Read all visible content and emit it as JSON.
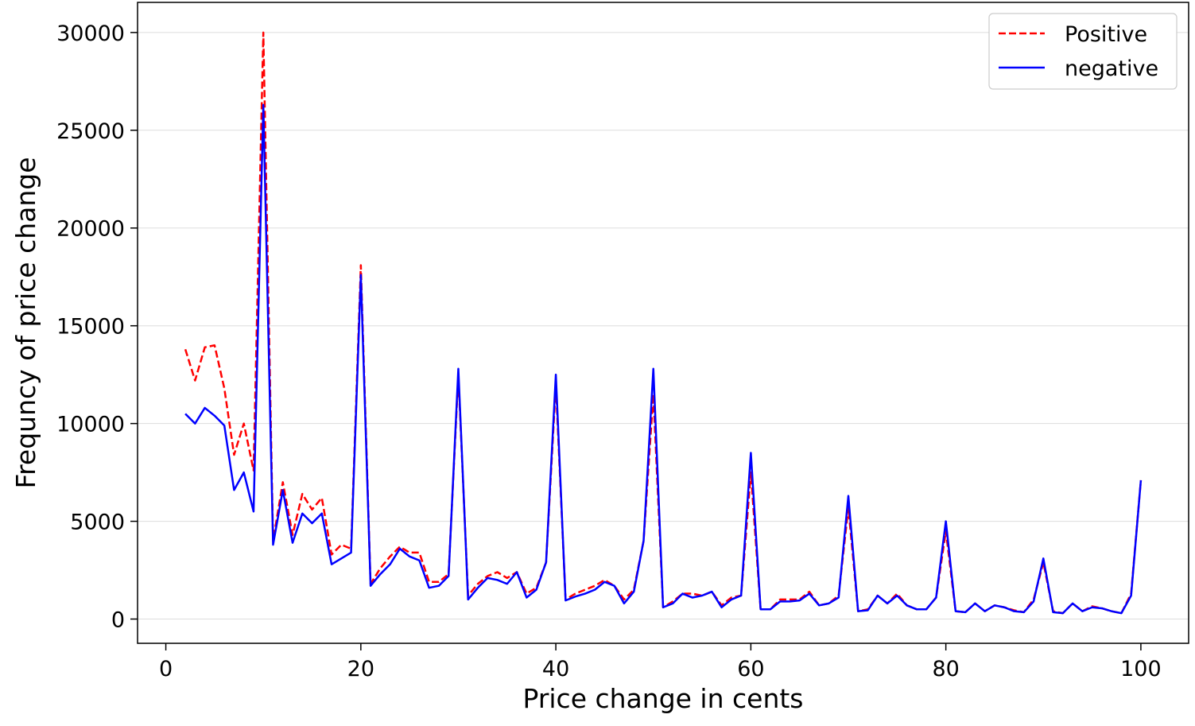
{
  "chart_data": {
    "type": "line",
    "xlabel": "Price change in cents",
    "ylabel": "Frequncy of price change",
    "x": [
      2,
      3,
      4,
      5,
      6,
      7,
      8,
      9,
      10,
      11,
      12,
      13,
      14,
      15,
      16,
      17,
      18,
      19,
      20,
      21,
      22,
      23,
      24,
      25,
      26,
      27,
      28,
      29,
      30,
      31,
      32,
      33,
      34,
      35,
      36,
      37,
      38,
      39,
      40,
      41,
      42,
      43,
      44,
      45,
      46,
      47,
      48,
      49,
      50,
      51,
      52,
      53,
      54,
      55,
      56,
      57,
      58,
      59,
      60,
      61,
      62,
      63,
      64,
      65,
      66,
      67,
      68,
      69,
      70,
      71,
      72,
      73,
      74,
      75,
      76,
      77,
      78,
      79,
      80,
      81,
      82,
      83,
      84,
      85,
      86,
      87,
      88,
      89,
      90,
      91,
      92,
      93,
      94,
      95,
      96,
      97,
      98,
      99,
      100
    ],
    "series": [
      {
        "name": "Positive",
        "color": "#ff0000",
        "dash": "dashed",
        "values": [
          13800,
          12200,
          13900,
          14000,
          11800,
          8400,
          10000,
          7600,
          30000,
          4000,
          7000,
          4300,
          6400,
          5600,
          6200,
          3300,
          3800,
          3600,
          18100,
          1800,
          2600,
          3200,
          3700,
          3400,
          3400,
          1900,
          1900,
          2300,
          12500,
          1200,
          1800,
          2200,
          2400,
          2100,
          2400,
          1300,
          1600,
          2900,
          12000,
          1000,
          1300,
          1500,
          1700,
          2000,
          1700,
          1000,
          1500,
          4000,
          11500,
          600,
          900,
          1300,
          1300,
          1200,
          1400,
          700,
          1100,
          1200,
          7500,
          500,
          500,
          1000,
          1000,
          1000,
          1400,
          700,
          800,
          1200,
          5700,
          400,
          500,
          1200,
          800,
          1300,
          700,
          500,
          500,
          1100,
          4500,
          400,
          350,
          800,
          400,
          700,
          600,
          450,
          350,
          1000,
          2900,
          400,
          300,
          800,
          400,
          650,
          550,
          400,
          300,
          1300,
          7100
        ]
      },
      {
        "name": "negative",
        "color": "#0000ff",
        "dash": "solid",
        "values": [
          10500,
          10000,
          10800,
          10400,
          9900,
          6600,
          7500,
          5500,
          26300,
          3800,
          6600,
          3900,
          5400,
          4900,
          5400,
          2800,
          3100,
          3400,
          17600,
          1700,
          2300,
          2800,
          3600,
          3200,
          3000,
          1600,
          1700,
          2200,
          12800,
          1000,
          1600,
          2100,
          2000,
          1800,
          2400,
          1100,
          1500,
          2900,
          12500,
          950,
          1150,
          1300,
          1500,
          1900,
          1700,
          800,
          1400,
          4000,
          12800,
          600,
          800,
          1300,
          1100,
          1200,
          1400,
          600,
          1000,
          1200,
          8500,
          500,
          500,
          900,
          900,
          950,
          1300,
          700,
          800,
          1100,
          6300,
          400,
          450,
          1200,
          800,
          1200,
          700,
          500,
          500,
          1100,
          5000,
          400,
          350,
          800,
          400,
          700,
          600,
          400,
          350,
          900,
          3100,
          350,
          300,
          800,
          400,
          600,
          550,
          400,
          300,
          1200,
          7100
        ]
      }
    ],
    "xlim": [
      -2.9,
      104.9
    ],
    "ylim": [
      -1240,
      31540
    ],
    "xticks": [
      0,
      20,
      40,
      60,
      80,
      100
    ],
    "yticks": [
      0,
      5000,
      10000,
      15000,
      20000,
      25000,
      30000
    ],
    "grid": "y",
    "legend": "upper right"
  }
}
